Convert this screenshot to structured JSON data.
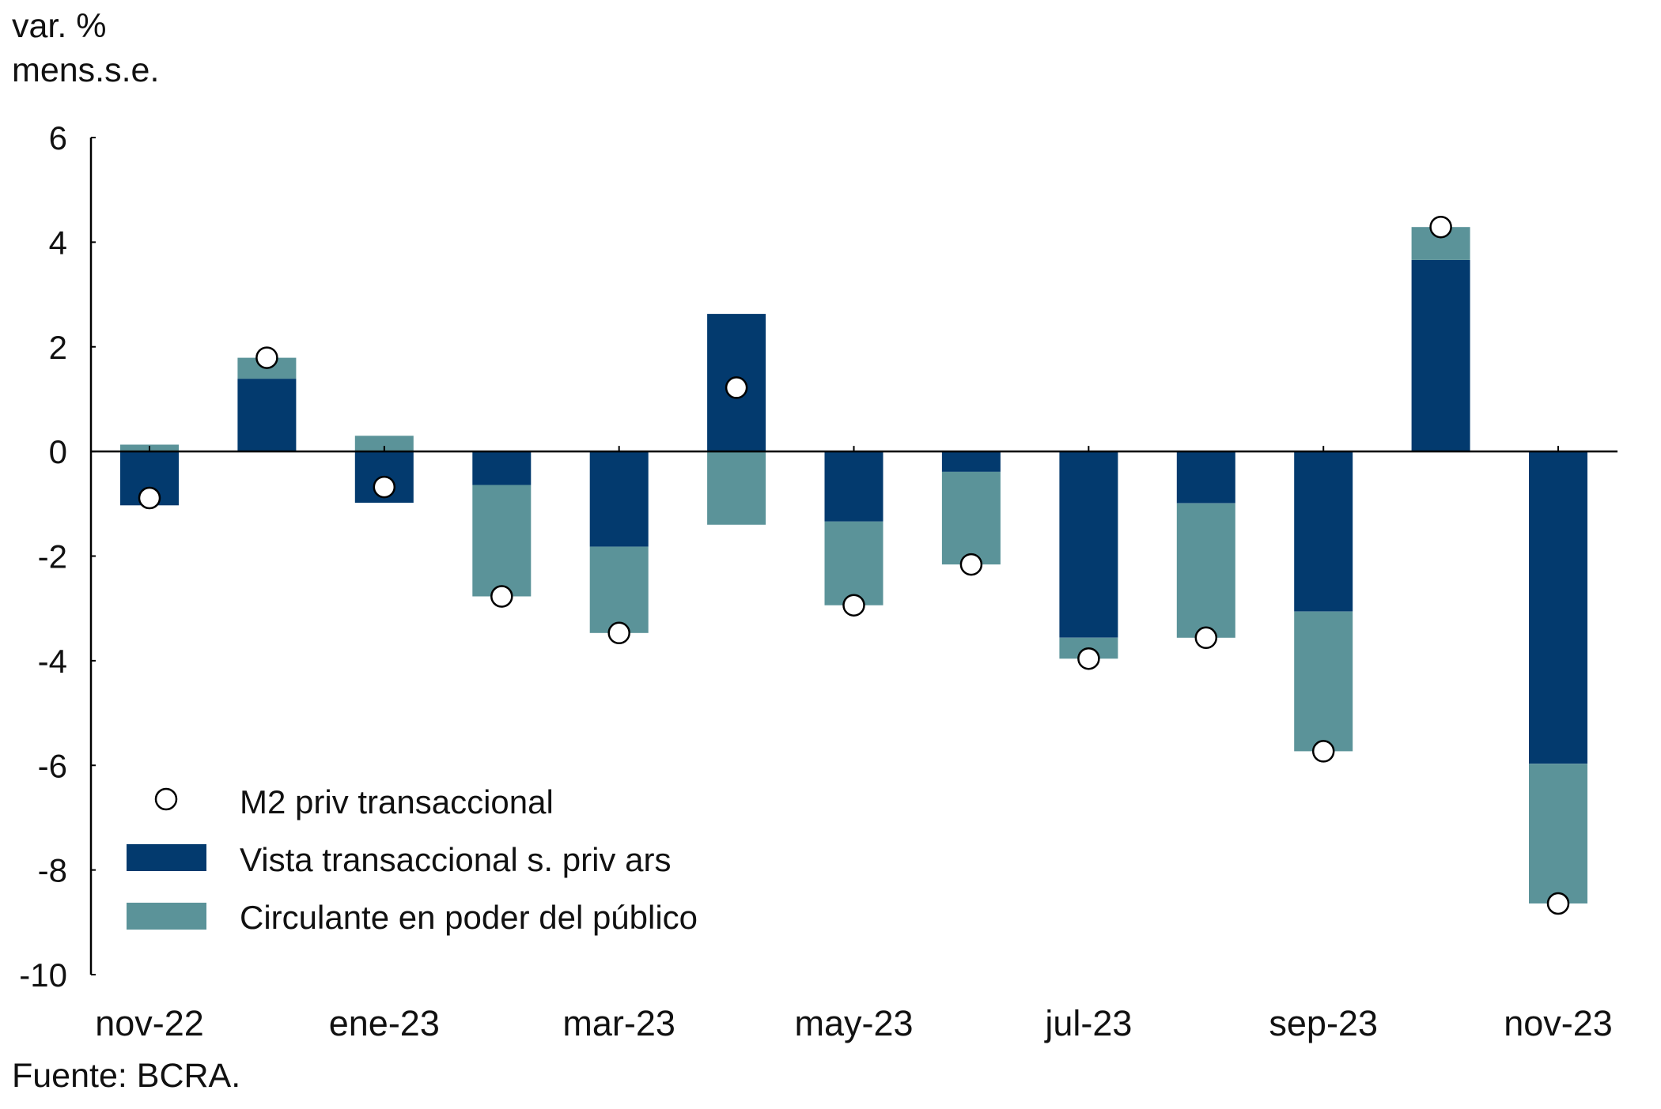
{
  "chart_data": {
    "type": "bar",
    "stacked": true,
    "ylabel_lines": [
      "var. %",
      "mens.s.e."
    ],
    "ylim": [
      -10,
      6
    ],
    "yticks": [
      6,
      4,
      2,
      0,
      -2,
      -4,
      -6,
      -8,
      -10
    ],
    "ytick_labels": [
      "6",
      "4",
      "2",
      "0",
      "-2",
      "-4",
      "-6",
      "-8",
      "-10"
    ],
    "n_points": 13,
    "xtick_labels": [
      {
        "index": 0,
        "label": "nov-22"
      },
      {
        "index": 2,
        "label": "ene-23"
      },
      {
        "index": 4,
        "label": "mar-23"
      },
      {
        "index": 6,
        "label": "may-23"
      },
      {
        "index": 8,
        "label": "jul-23"
      },
      {
        "index": 10,
        "label": "sep-23"
      },
      {
        "index": 12,
        "label": "nov-23"
      }
    ],
    "series": [
      {
        "name": "Vista transaccional s. priv ars",
        "kind": "bar",
        "color": "#033A6E",
        "values": [
          -1.03,
          1.39,
          -0.98,
          -0.64,
          -1.82,
          2.63,
          -1.34,
          -0.39,
          -3.56,
          -0.99,
          -3.06,
          3.66,
          -5.97
        ]
      },
      {
        "name": "Circulante en poder del público",
        "kind": "bar",
        "color": "#5B9399",
        "values": [
          0.13,
          0.4,
          0.3,
          -2.13,
          -1.65,
          -1.4,
          -1.6,
          -1.77,
          -0.4,
          -2.57,
          -2.67,
          0.63,
          -2.67
        ]
      },
      {
        "name": "M2 priv transaccional",
        "kind": "marker",
        "color": "#FFFFFF",
        "values": [
          -0.89,
          1.79,
          -0.68,
          -2.77,
          -3.47,
          1.22,
          -2.94,
          -2.16,
          -3.96,
          -3.56,
          -5.73,
          4.29,
          -8.64
        ]
      }
    ],
    "legend": {
      "position": "bottom-left",
      "entries": [
        {
          "label": "M2 priv transaccional",
          "symbol": "circle"
        },
        {
          "label": "Vista transaccional s. priv ars",
          "symbol": "navy-rect"
        },
        {
          "label": "Circulante en poder del público",
          "symbol": "teal-rect"
        }
      ]
    },
    "grid": false
  },
  "source": "Fuente: BCRA."
}
